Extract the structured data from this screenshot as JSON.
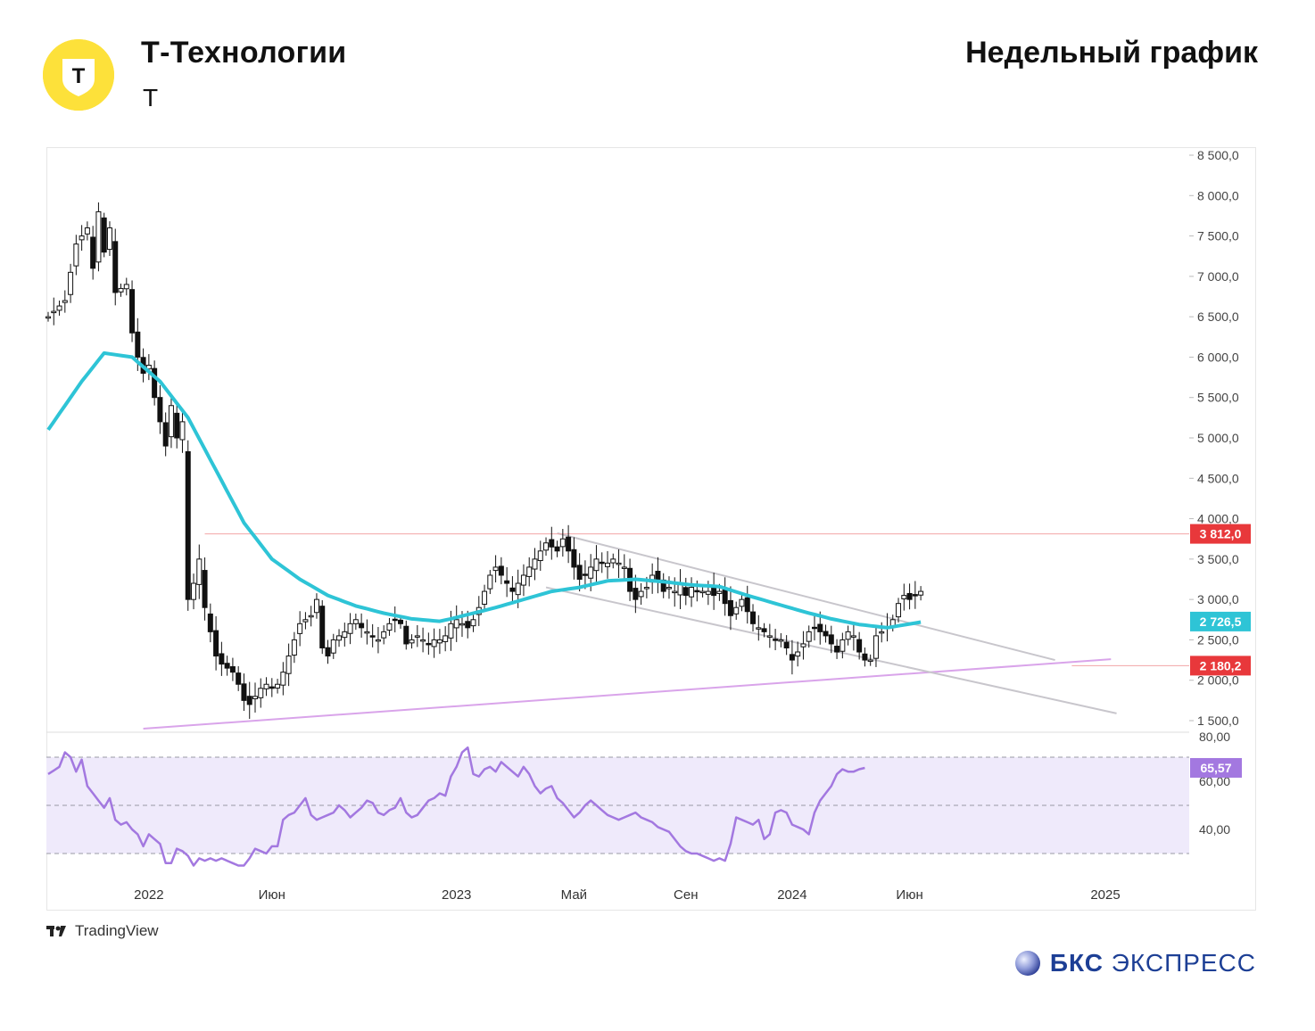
{
  "header": {
    "company": "Т-Технологии",
    "ticker": "T",
    "chart_kind": "Недельный график",
    "logo_letter": "T"
  },
  "footer": {
    "tv_brand": "TradingView",
    "bks_brand": "БКС",
    "bks_suffix": "ЭКСПРЕСС"
  },
  "colors": {
    "up_candle": "#ffffff",
    "down_candle": "#111111",
    "ma": "#2ec4d6",
    "rsi": "#a378e0",
    "rsi_band": "#efeafb",
    "level_red": "#e8383b",
    "trend_purple": "#d9a4ea",
    "channel": "#c8c6cc",
    "logo_yellow": "#fde13a"
  },
  "chart_data": [
    {
      "type": "candlestick",
      "timeframe": "weekly",
      "ylim": [
        1400,
        8600
      ],
      "y_ticks": [
        "8 500,0",
        "8 000,0",
        "7 500,0",
        "7 000,0",
        "6 500,0",
        "6 000,0",
        "5 500,0",
        "5 000,0",
        "4 500,0",
        "4 000,0",
        "3 500,0",
        "3 000,0",
        "2 500,0",
        "2 000,0",
        "1 500,0"
      ],
      "x_labels": [
        "2022",
        "Июн",
        "2023",
        "Май",
        "Сен",
        "2024",
        "Июн",
        "2025"
      ],
      "x_label_positions": [
        18,
        40,
        73,
        94,
        114,
        133,
        154,
        189
      ],
      "n_bars": 196,
      "close_anchors": [
        [
          0,
          6500
        ],
        [
          3,
          6700
        ],
        [
          5,
          7400
        ],
        [
          7,
          7600
        ],
        [
          8,
          7100
        ],
        [
          9,
          7800
        ],
        [
          10,
          7300
        ],
        [
          11,
          7600
        ],
        [
          12,
          6800
        ],
        [
          14,
          6900
        ],
        [
          15,
          6300
        ],
        [
          16,
          6000
        ],
        [
          17,
          5800
        ],
        [
          18,
          5900
        ],
        [
          19,
          5500
        ],
        [
          21,
          4900
        ],
        [
          22,
          5400
        ],
        [
          23,
          5000
        ],
        [
          24,
          5200
        ],
        [
          25,
          3000
        ],
        [
          26,
          3200
        ],
        [
          27,
          3500
        ],
        [
          28,
          2900
        ],
        [
          29,
          2600
        ],
        [
          30,
          2300
        ],
        [
          31,
          2200
        ],
        [
          32,
          2150
        ],
        [
          33,
          2100
        ],
        [
          34,
          1950
        ],
        [
          35,
          1750
        ],
        [
          36,
          1700
        ],
        [
          37,
          1800
        ],
        [
          38,
          1900
        ],
        [
          39,
          1950
        ],
        [
          40,
          1900
        ],
        [
          41,
          1950
        ],
        [
          42,
          2100
        ],
        [
          43,
          2300
        ],
        [
          44,
          2500
        ],
        [
          45,
          2700
        ],
        [
          46,
          2750
        ],
        [
          47,
          2800
        ],
        [
          48,
          3000
        ],
        [
          49,
          2400
        ],
        [
          50,
          2300
        ],
        [
          51,
          2500
        ],
        [
          52,
          2550
        ],
        [
          53,
          2600
        ],
        [
          54,
          2700
        ],
        [
          55,
          2750
        ],
        [
          56,
          2650
        ],
        [
          57,
          2600
        ],
        [
          58,
          2550
        ],
        [
          59,
          2500
        ],
        [
          60,
          2600
        ],
        [
          61,
          2700
        ],
        [
          62,
          2750
        ],
        [
          63,
          2700
        ],
        [
          64,
          2450
        ],
        [
          65,
          2500
        ],
        [
          66,
          2550
        ],
        [
          67,
          2500
        ],
        [
          68,
          2450
        ],
        [
          69,
          2500
        ],
        [
          70,
          2500
        ],
        [
          71,
          2550
        ],
        [
          72,
          2700
        ],
        [
          73,
          2750
        ],
        [
          74,
          2700
        ],
        [
          75,
          2650
        ],
        [
          76,
          2750
        ],
        [
          77,
          2900
        ],
        [
          78,
          3100
        ],
        [
          79,
          3300
        ],
        [
          80,
          3400
        ],
        [
          81,
          3300
        ],
        [
          82,
          3200
        ],
        [
          83,
          3100
        ],
        [
          84,
          3200
        ],
        [
          85,
          3300
        ],
        [
          86,
          3400
        ],
        [
          87,
          3500
        ],
        [
          88,
          3600
        ],
        [
          89,
          3700
        ],
        [
          90,
          3650
        ],
        [
          91,
          3600
        ],
        [
          92,
          3750
        ],
        [
          93,
          3600
        ],
        [
          94,
          3400
        ],
        [
          95,
          3250
        ],
        [
          96,
          3300
        ],
        [
          97,
          3400
        ],
        [
          98,
          3500
        ],
        [
          99,
          3450
        ],
        [
          100,
          3450
        ],
        [
          101,
          3500
        ],
        [
          102,
          3450
        ],
        [
          103,
          3400
        ],
        [
          104,
          3100
        ],
        [
          105,
          3000
        ],
        [
          106,
          3100
        ],
        [
          107,
          3150
        ],
        [
          108,
          3300
        ],
        [
          109,
          3250
        ],
        [
          110,
          3100
        ],
        [
          111,
          3150
        ],
        [
          112,
          3100
        ],
        [
          113,
          3200
        ],
        [
          114,
          3050
        ],
        [
          115,
          3150
        ],
        [
          116,
          3100
        ],
        [
          117,
          3100
        ],
        [
          118,
          3100
        ],
        [
          119,
          3050
        ],
        [
          120,
          3100
        ],
        [
          121,
          2950
        ],
        [
          122,
          2800
        ],
        [
          123,
          2900
        ],
        [
          124,
          3000
        ],
        [
          125,
          2850
        ],
        [
          126,
          2700
        ],
        [
          127,
          2650
        ],
        [
          128,
          2600
        ],
        [
          129,
          2550
        ],
        [
          130,
          2500
        ],
        [
          131,
          2500
        ],
        [
          132,
          2400
        ],
        [
          133,
          2250
        ],
        [
          134,
          2350
        ],
        [
          135,
          2450
        ],
        [
          136,
          2600
        ],
        [
          137,
          2650
        ],
        [
          138,
          2600
        ],
        [
          139,
          2550
        ],
        [
          140,
          2450
        ],
        [
          141,
          2350
        ],
        [
          142,
          2500
        ],
        [
          143,
          2600
        ],
        [
          144,
          2550
        ],
        [
          145,
          2350
        ],
        [
          146,
          2250
        ],
        [
          147,
          2250
        ],
        [
          148,
          2550
        ],
        [
          149,
          2600
        ],
        [
          150,
          2650
        ],
        [
          151,
          2750
        ],
        [
          152,
          2950
        ],
        [
          153,
          3050
        ],
        [
          154,
          3000
        ],
        [
          155,
          3050
        ],
        [
          156,
          3100
        ]
      ],
      "moving_average": {
        "value_label": "2 726,5",
        "anchors": [
          [
            0,
            5100
          ],
          [
            6,
            5700
          ],
          [
            10,
            6050
          ],
          [
            15,
            6000
          ],
          [
            20,
            5700
          ],
          [
            25,
            5250
          ],
          [
            30,
            4600
          ],
          [
            35,
            3950
          ],
          [
            40,
            3500
          ],
          [
            45,
            3250
          ],
          [
            50,
            3050
          ],
          [
            55,
            2920
          ],
          [
            60,
            2830
          ],
          [
            65,
            2760
          ],
          [
            70,
            2730
          ],
          [
            72,
            2760
          ],
          [
            80,
            2900
          ],
          [
            90,
            3100
          ],
          [
            95,
            3150
          ],
          [
            100,
            3230
          ],
          [
            105,
            3250
          ],
          [
            110,
            3220
          ],
          [
            115,
            3180
          ],
          [
            120,
            3160
          ],
          [
            125,
            3050
          ],
          [
            130,
            2950
          ],
          [
            135,
            2850
          ],
          [
            140,
            2760
          ],
          [
            145,
            2690
          ],
          [
            150,
            2650
          ],
          [
            156,
            2720
          ]
        ]
      },
      "levels": [
        {
          "value": 3812.0,
          "label": "3 812,0"
        },
        {
          "value": 2180.2,
          "label": "2 180,2"
        }
      ],
      "trendlines": [
        {
          "name": "support",
          "from": [
            17,
            1400
          ],
          "to": [
            190,
            2260
          ]
        },
        {
          "name": "channel-upper",
          "from": [
            91,
            3820
          ],
          "to": [
            180,
            2250
          ]
        },
        {
          "name": "channel-lower",
          "from": [
            89,
            3150
          ],
          "to": [
            191,
            1590
          ]
        }
      ]
    },
    {
      "type": "line",
      "indicator": "RSI",
      "ylim": [
        20,
        80
      ],
      "y_ticks": [
        "80,00",
        "60,00",
        "40,00"
      ],
      "band": [
        30,
        70
      ],
      "midline": 50,
      "value_label": "65,57",
      "anchors": [
        [
          0,
          63
        ],
        [
          2,
          66
        ],
        [
          3,
          72
        ],
        [
          4,
          70
        ],
        [
          5,
          64
        ],
        [
          6,
          69
        ],
        [
          7,
          58
        ],
        [
          8,
          55
        ],
        [
          9,
          52
        ],
        [
          10,
          49
        ],
        [
          11,
          53
        ],
        [
          12,
          44
        ],
        [
          13,
          42
        ],
        [
          14,
          43
        ],
        [
          15,
          40
        ],
        [
          16,
          38
        ],
        [
          17,
          33
        ],
        [
          18,
          38
        ],
        [
          19,
          36
        ],
        [
          20,
          34
        ],
        [
          21,
          26
        ],
        [
          22,
          26
        ],
        [
          23,
          32
        ],
        [
          24,
          31
        ],
        [
          25,
          29
        ],
        [
          26,
          25
        ],
        [
          27,
          28
        ],
        [
          28,
          27
        ],
        [
          29,
          28
        ],
        [
          30,
          27
        ],
        [
          31,
          28
        ],
        [
          32,
          27
        ],
        [
          33,
          26
        ],
        [
          34,
          25
        ],
        [
          35,
          25
        ],
        [
          36,
          28
        ],
        [
          37,
          32
        ],
        [
          38,
          31
        ],
        [
          39,
          30
        ],
        [
          40,
          33
        ],
        [
          41,
          33
        ],
        [
          42,
          44
        ],
        [
          43,
          46
        ],
        [
          44,
          47
        ],
        [
          45,
          50
        ],
        [
          46,
          53
        ],
        [
          47,
          46
        ],
        [
          48,
          44
        ],
        [
          49,
          45
        ],
        [
          50,
          46
        ],
        [
          51,
          47
        ],
        [
          52,
          50
        ],
        [
          53,
          48
        ],
        [
          54,
          45
        ],
        [
          55,
          47
        ],
        [
          56,
          49
        ],
        [
          57,
          52
        ],
        [
          58,
          51
        ],
        [
          59,
          47
        ],
        [
          60,
          46
        ],
        [
          61,
          48
        ],
        [
          62,
          49
        ],
        [
          63,
          53
        ],
        [
          64,
          47
        ],
        [
          65,
          45
        ],
        [
          66,
          46
        ],
        [
          67,
          49
        ],
        [
          68,
          52
        ],
        [
          69,
          53
        ],
        [
          70,
          55
        ],
        [
          71,
          54
        ],
        [
          72,
          62
        ],
        [
          73,
          66
        ],
        [
          74,
          72
        ],
        [
          75,
          74
        ],
        [
          76,
          63
        ],
        [
          77,
          62
        ],
        [
          78,
          65
        ],
        [
          79,
          66
        ],
        [
          80,
          64
        ],
        [
          81,
          68
        ],
        [
          82,
          66
        ],
        [
          83,
          64
        ],
        [
          84,
          62
        ],
        [
          85,
          66
        ],
        [
          86,
          63
        ],
        [
          87,
          58
        ],
        [
          88,
          55
        ],
        [
          89,
          57
        ],
        [
          90,
          58
        ],
        [
          91,
          53
        ],
        [
          92,
          51
        ],
        [
          93,
          48
        ],
        [
          94,
          45
        ],
        [
          95,
          47
        ],
        [
          96,
          50
        ],
        [
          97,
          52
        ],
        [
          98,
          50
        ],
        [
          99,
          48
        ],
        [
          100,
          46
        ],
        [
          101,
          45
        ],
        [
          102,
          44
        ],
        [
          103,
          45
        ],
        [
          104,
          46
        ],
        [
          105,
          47
        ],
        [
          106,
          45
        ],
        [
          107,
          44
        ],
        [
          108,
          43
        ],
        [
          109,
          41
        ],
        [
          110,
          40
        ],
        [
          111,
          39
        ],
        [
          112,
          36
        ],
        [
          113,
          33
        ],
        [
          114,
          31
        ],
        [
          115,
          30
        ],
        [
          116,
          30
        ],
        [
          117,
          29
        ],
        [
          118,
          28
        ],
        [
          119,
          27
        ],
        [
          120,
          28
        ],
        [
          121,
          27
        ],
        [
          122,
          34
        ],
        [
          123,
          45
        ],
        [
          124,
          44
        ],
        [
          125,
          43
        ],
        [
          126,
          42
        ],
        [
          127,
          44
        ],
        [
          128,
          36
        ],
        [
          129,
          38
        ],
        [
          130,
          47
        ],
        [
          131,
          48
        ],
        [
          132,
          47
        ],
        [
          133,
          42
        ],
        [
          134,
          41
        ],
        [
          135,
          40
        ],
        [
          136,
          38
        ],
        [
          137,
          47
        ],
        [
          138,
          52
        ],
        [
          139,
          55
        ],
        [
          140,
          58
        ],
        [
          141,
          63
        ],
        [
          142,
          65
        ],
        [
          143,
          64
        ],
        [
          144,
          64
        ],
        [
          145,
          65
        ],
        [
          146,
          65.57
        ]
      ]
    }
  ]
}
